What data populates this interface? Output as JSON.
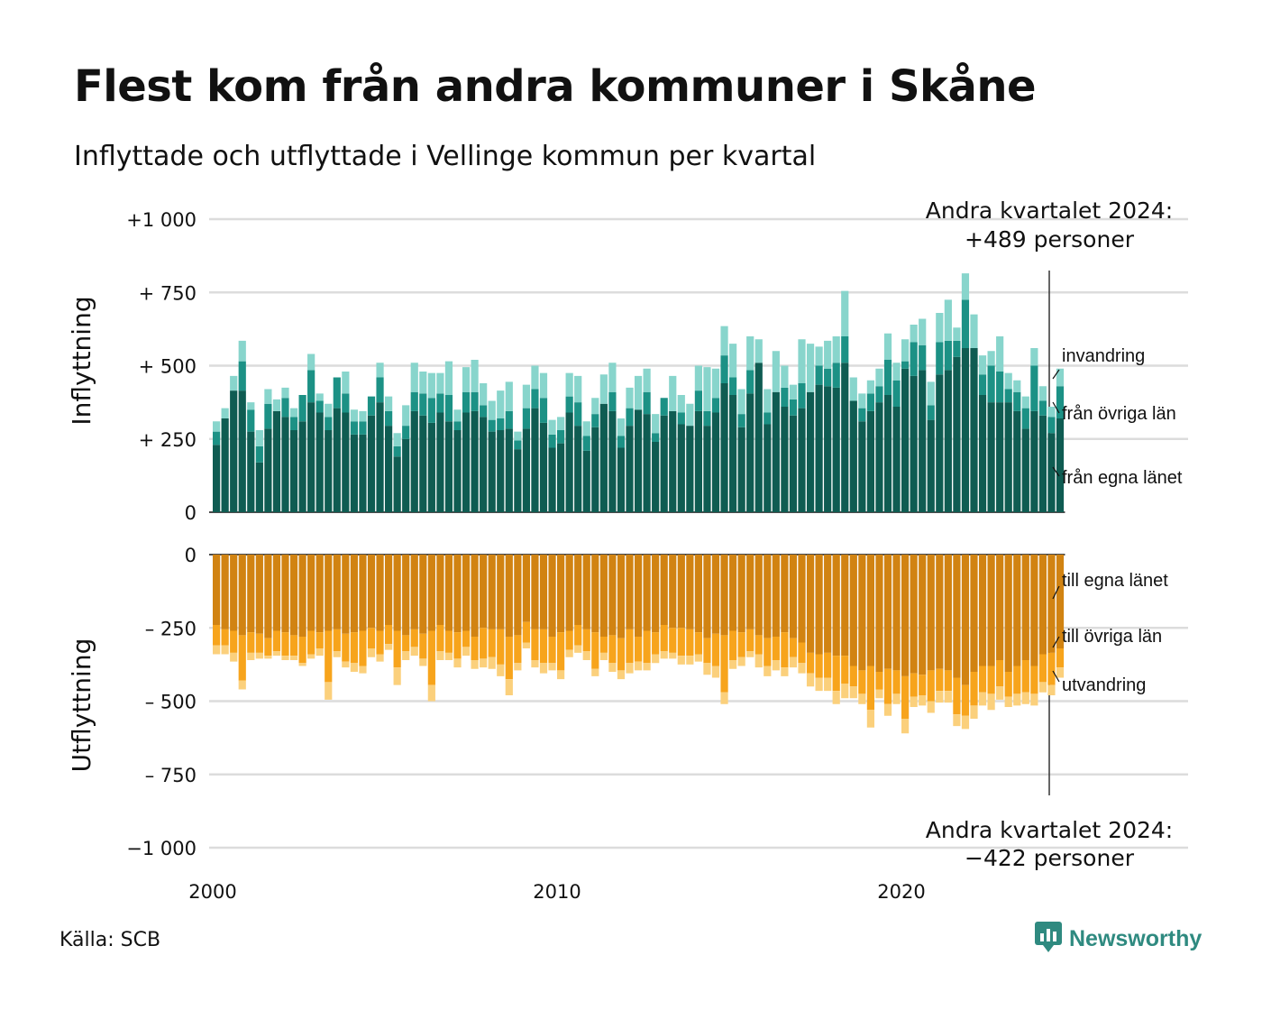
{
  "title": "Flest kom från andra kommuner i Skåne",
  "subtitle": "Inflyttade och utflyttade i Vellinge kommun per kvartal",
  "source": "Källa: SCB",
  "brand": {
    "name": "Newsworthy",
    "icon": "newsworthy-logo-icon",
    "color": "#2f8a80"
  },
  "chart_data": {
    "type": "bar",
    "stacked": true,
    "frequency": "quarterly",
    "x_start": "2000 Q1",
    "x_end": "2024 Q2",
    "x_ticks": [
      "2000",
      "2010",
      "2020"
    ],
    "panels": [
      {
        "axis_title": "Inflyttning",
        "ylim": [
          0,
          1000
        ],
        "y_ticks": [
          {
            "value": 1000,
            "label": "+1 000"
          },
          {
            "value": 750,
            "label": "+  750"
          },
          {
            "value": 500,
            "label": "+  500"
          },
          {
            "value": 250,
            "label": "+  250"
          },
          {
            "value": 0,
            "label": "0"
          }
        ],
        "annotation": [
          "Andra kvartalet 2024:",
          "+489 personer"
        ],
        "series": [
          {
            "name": "från egna länet",
            "color": "#0f5c52",
            "values": [
              230,
              320,
              415,
              415,
              275,
              170,
              285,
              345,
              325,
              280,
              310,
              375,
              340,
              280,
              355,
              340,
              265,
              265,
              330,
              375,
              295,
              190,
              250,
              345,
              330,
              305,
              340,
              310,
              280,
              340,
              345,
              325,
              275,
              280,
              285,
              215,
              285,
              355,
              305,
              220,
              235,
              340,
              295,
              210,
              290,
              370,
              345,
              220,
              295,
              350,
              335,
              240,
              330,
              345,
              300,
              295,
              345,
              295,
              340,
              440,
              400,
              290,
              405,
              510,
              300,
              410,
              360,
              330,
              355,
              410,
              435,
              430,
              425,
              510,
              380,
              310,
              345,
              375,
              400,
              360,
              490,
              465,
              485,
              315,
              470,
              485,
              530,
              560,
              560,
              400,
              375,
              375,
              375,
              345,
              285,
              345,
              330,
              270,
              320
            ]
          },
          {
            "name": "från övriga län",
            "color": "#1c9185",
            "values": [
              45,
              0,
              0,
              100,
              75,
              55,
              85,
              0,
              65,
              45,
              90,
              110,
              40,
              45,
              105,
              65,
              45,
              45,
              65,
              85,
              50,
              35,
              45,
              65,
              75,
              85,
              65,
              90,
              30,
              70,
              65,
              40,
              40,
              40,
              60,
              30,
              70,
              65,
              85,
              45,
              45,
              55,
              80,
              50,
              45,
              0,
              65,
              40,
              60,
              0,
              75,
              30,
              60,
              0,
              40,
              0,
              70,
              50,
              50,
              95,
              60,
              45,
              80,
              0,
              40,
              0,
              65,
              55,
              85,
              0,
              65,
              60,
              85,
              90,
              0,
              45,
              60,
              55,
              120,
              90,
              25,
              115,
              85,
              50,
              110,
              100,
              55,
              165,
              0,
              70,
              125,
              105,
              45,
              65,
              70,
              155,
              50,
              55,
              110
            ]
          },
          {
            "name": "invandring",
            "color": "#88d5cc",
            "values": [
              35,
              35,
              50,
              70,
              25,
              55,
              50,
              40,
              35,
              30,
              0,
              55,
              25,
              45,
              0,
              75,
              40,
              35,
              0,
              50,
              50,
              45,
              70,
              100,
              75,
              85,
              70,
              115,
              40,
              85,
              110,
              75,
              65,
              95,
              100,
              30,
              80,
              80,
              85,
              50,
              45,
              80,
              90,
              50,
              55,
              100,
              100,
              60,
              70,
              115,
              80,
              65,
              0,
              120,
              60,
              75,
              85,
              150,
              100,
              100,
              115,
              85,
              115,
              80,
              80,
              140,
              75,
              50,
              150,
              165,
              65,
              95,
              90,
              155,
              80,
              50,
              45,
              60,
              90,
              60,
              75,
              60,
              90,
              80,
              100,
              140,
              45,
              90,
              115,
              65,
              50,
              120,
              55,
              40,
              40,
              60,
              50,
              35,
              60
            ]
          }
        ]
      },
      {
        "axis_title": "Utflyttning",
        "ylim": [
          -1000,
          0
        ],
        "y_ticks": [
          {
            "value": 0,
            "label": "0"
          },
          {
            "value": -250,
            "label": "–  250"
          },
          {
            "value": -500,
            "label": "–  500"
          },
          {
            "value": -750,
            "label": "–  750"
          },
          {
            "value": -1000,
            "label": "−1 000"
          }
        ],
        "annotation": [
          "Andra kvartalet 2024:",
          "−422 personer"
        ],
        "series": [
          {
            "name": "till egna länet",
            "color": "#d18312",
            "values": [
              -240,
              -255,
              -260,
              -275,
              -265,
              -270,
              -285,
              -260,
              -265,
              -275,
              -280,
              -260,
              -265,
              -260,
              -255,
              -270,
              -265,
              -260,
              -250,
              -260,
              -240,
              -260,
              -275,
              -255,
              -270,
              -260,
              -240,
              -260,
              -265,
              -260,
              -280,
              -250,
              -255,
              -255,
              -280,
              -275,
              -230,
              -255,
              -255,
              -280,
              -265,
              -260,
              -240,
              -255,
              -265,
              -280,
              -275,
              -285,
              -255,
              -280,
              -260,
              -265,
              -240,
              -250,
              -250,
              -255,
              -265,
              -285,
              -270,
              -275,
              -260,
              -265,
              -255,
              -275,
              -285,
              -280,
              -265,
              -285,
              -300,
              -335,
              -340,
              -335,
              -345,
              -345,
              -380,
              -395,
              -380,
              -400,
              -390,
              -395,
              -415,
              -405,
              -410,
              -395,
              -390,
              -395,
              -420,
              -445,
              -400,
              -380,
              -380,
              -360,
              -400,
              -380,
              -360,
              -380,
              -340,
              -335,
              -320
            ]
          },
          {
            "name": "till övriga län",
            "color": "#f7a41c",
            "values": [
              -70,
              -55,
              -75,
              -155,
              -70,
              -65,
              -60,
              -70,
              -80,
              -70,
              -90,
              -80,
              -55,
              -175,
              -75,
              -95,
              -105,
              -120,
              -70,
              -80,
              -65,
              -125,
              -55,
              -60,
              -85,
              -185,
              -90,
              -75,
              -90,
              -55,
              -80,
              -105,
              -95,
              -120,
              -145,
              -95,
              -70,
              -105,
              -115,
              -90,
              -130,
              -65,
              -70,
              -75,
              -125,
              -55,
              -95,
              -110,
              -115,
              -85,
              -110,
              -75,
              -90,
              -85,
              -95,
              -90,
              -75,
              -85,
              -110,
              -195,
              -100,
              -85,
              -75,
              -65,
              -95,
              -80,
              -120,
              -65,
              -70,
              -70,
              -80,
              -85,
              -120,
              -95,
              -70,
              -80,
              -150,
              -60,
              -120,
              -80,
              -145,
              -80,
              -70,
              -105,
              -75,
              -70,
              -125,
              -105,
              -115,
              -90,
              -95,
              -90,
              -85,
              -95,
              -110,
              -95,
              -95,
              -110,
              -65
            ]
          },
          {
            "name": "utvandring",
            "color": "#fbd07c",
            "values": [
              -30,
              -30,
              -30,
              -30,
              -25,
              -20,
              -10,
              -15,
              -15,
              -15,
              -10,
              -15,
              -25,
              -60,
              -20,
              -20,
              -30,
              -25,
              -30,
              -25,
              -20,
              -60,
              -30,
              -30,
              -25,
              -55,
              -30,
              -25,
              -30,
              -30,
              -30,
              -30,
              -40,
              -40,
              -55,
              -25,
              -20,
              -25,
              -35,
              -25,
              -30,
              -25,
              -25,
              -30,
              -25,
              -25,
              -30,
              -30,
              -35,
              -30,
              -25,
              -30,
              -25,
              -20,
              -30,
              -30,
              -25,
              -40,
              -40,
              -40,
              -30,
              -30,
              -20,
              -45,
              -35,
              -35,
              -30,
              -35,
              -35,
              -45,
              -45,
              -45,
              -45,
              -50,
              -40,
              -35,
              -60,
              -30,
              -40,
              -35,
              -50,
              -35,
              -35,
              -40,
              -40,
              -40,
              -40,
              -45,
              -45,
              -45,
              -55,
              -45,
              -35,
              -40,
              -40,
              -40,
              -35,
              -35,
              -35
            ]
          }
        ]
      }
    ]
  }
}
